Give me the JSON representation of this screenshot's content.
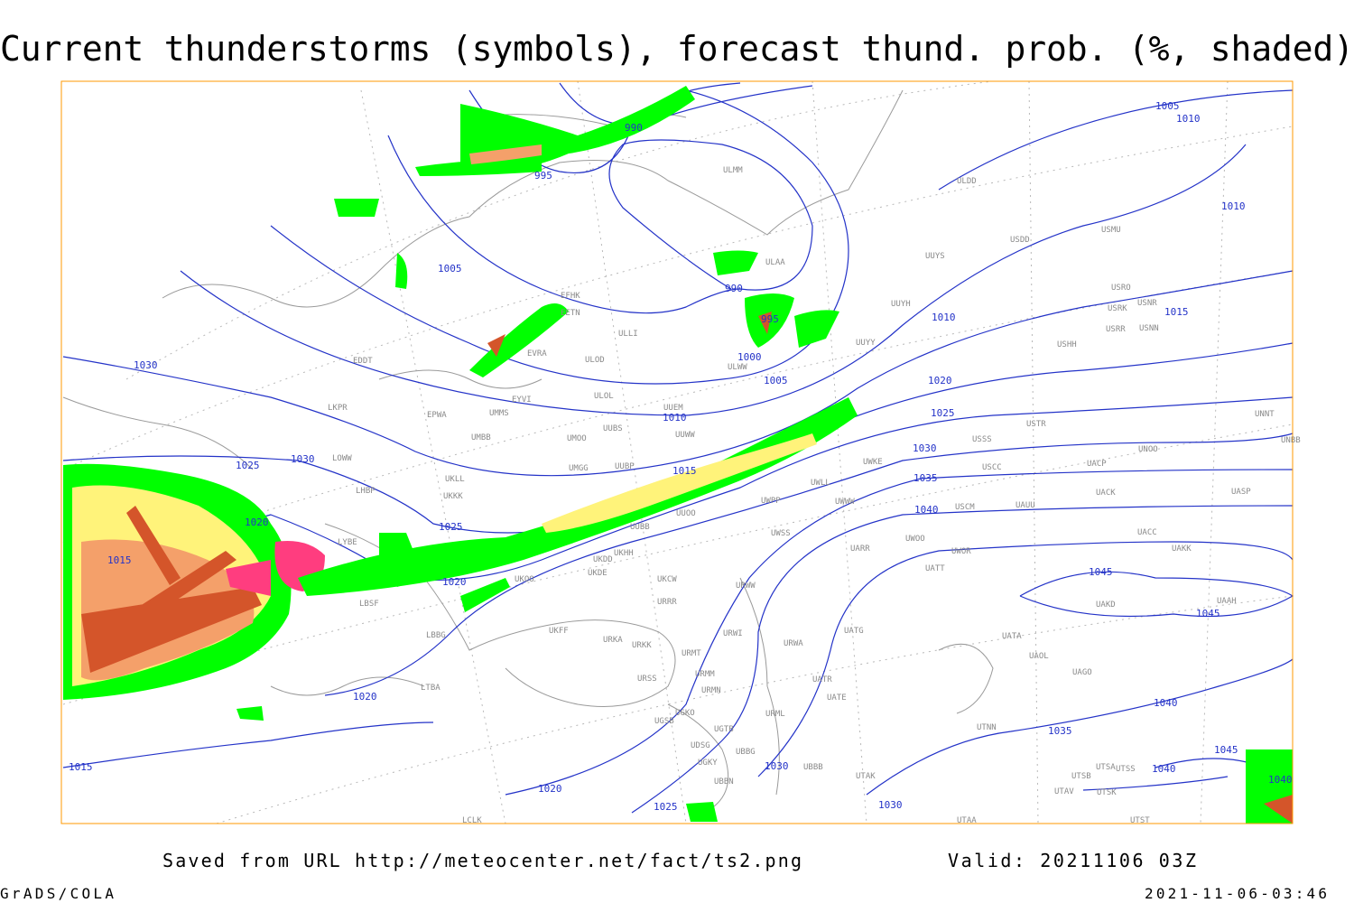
{
  "header": {
    "title": "Current thunderstorms (symbols), forecast thund. prob. (%, shaded)"
  },
  "footer": {
    "source": "Saved from URL http://meteocenter.net/fact/ts2.png",
    "valid": "Valid: 20211106 03Z",
    "software": "GrADS/COLA",
    "timestamp": "2021-11-06-03:46"
  },
  "isobar_labels": [
    990,
    995,
    1005,
    1010,
    1010,
    1005,
    990,
    995,
    1000,
    1005,
    1010,
    1015,
    1020,
    1025,
    1030,
    1035,
    1040,
    1045,
    1045,
    1030,
    1030,
    1025,
    1020,
    1015,
    1015,
    1010,
    1025,
    1020,
    1020,
    1015,
    1020,
    1025,
    1030,
    1030,
    1035,
    1040,
    1045,
    1040,
    1040
  ],
  "stations": [
    "ULDD",
    "USMU",
    "USDD",
    "UUYS",
    "USRO",
    "USRK",
    "USNR",
    "USRR",
    "USNN",
    "UUYH",
    "UUYY",
    "USHH",
    "ULMM",
    "ULAA",
    "ULWW",
    "UUEM",
    "UUWW",
    "USTR",
    "USSS",
    "UNNT",
    "UNBB",
    "UNOO",
    "UWKE",
    "USCC",
    "UACP",
    "UACK",
    "UASP",
    "UWLL",
    "UWWW",
    "UWPP",
    "USCM",
    "UAUU",
    "UWOO",
    "UWOR",
    "UATT",
    "UACC",
    "UAKK",
    "UARR",
    "UWSS",
    "UUOO",
    "UUBB",
    "UKHH",
    "UKDD",
    "UKDE",
    "UKOO",
    "UKCW",
    "URWW",
    "URRR",
    "UAKD",
    "UAAH",
    "UATG",
    "UATA",
    "UAOL",
    "UAGO",
    "URWI",
    "URWA",
    "URMT",
    "URKA",
    "URKK",
    "UKFF",
    "URMM",
    "URSS",
    "URMN",
    "UATR",
    "UATE",
    "URML",
    "UGSB",
    "UGKO",
    "UGTB",
    "UTNN",
    "UTAK",
    "UBBB",
    "UBBN",
    "UGKY",
    "UDSG",
    "UBBG",
    "UTSA",
    "UTSS",
    "UTSB",
    "UTAV",
    "UTSK",
    "UTAA",
    "UTST",
    "LBSF",
    "LBBG",
    "LTBA",
    "LCLK",
    "LHBP",
    "LOWW",
    "LKPR",
    "EDDT",
    "EPWA",
    "UMMS",
    "UMBB",
    "UKLL",
    "UKKK",
    "LYBE",
    "EVRA",
    "ULOD",
    "ULOL",
    "EYVI",
    "UMOO",
    "UUBS",
    "UUBP",
    "UMGG",
    "EFHK",
    "EETN",
    "ULLI"
  ]
}
